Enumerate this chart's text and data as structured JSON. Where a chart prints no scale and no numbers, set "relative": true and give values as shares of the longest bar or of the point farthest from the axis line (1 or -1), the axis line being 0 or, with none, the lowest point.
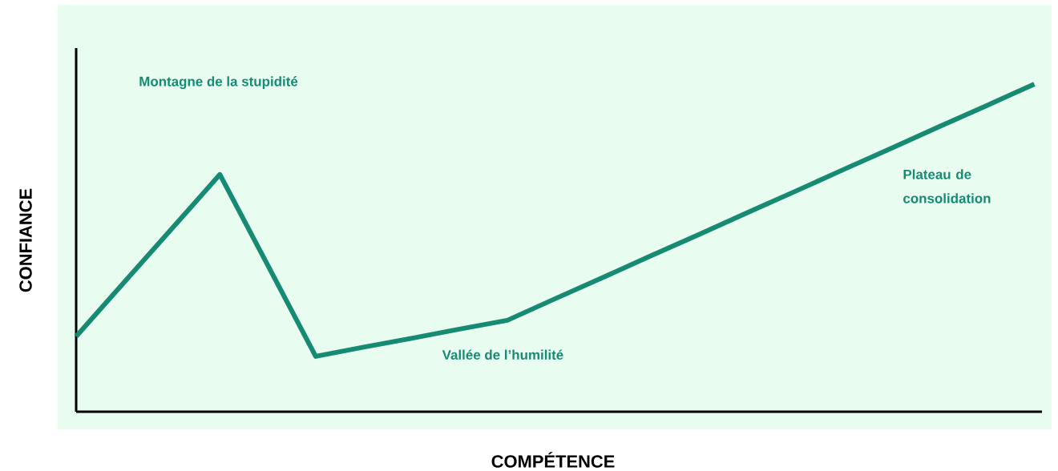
{
  "chart_data": {
    "type": "line",
    "relative": true,
    "xlabel": "COMPÉTENCE",
    "ylabel": "CONFIANCE",
    "categories": [
      null,
      null,
      null,
      null,
      null,
      null,
      null,
      null,
      null,
      null,
      null,
      null,
      null,
      null,
      null,
      null,
      null,
      null,
      null,
      null,
      null
    ],
    "series": [
      {
        "color": "#168a73",
        "values": [
          0.23,
          0.395,
          0.559,
          0.724,
          0.447,
          0.169,
          0.197,
          0.224,
          0.252,
          0.279,
          0.345,
          0.41,
          0.476,
          0.541,
          0.607,
          0.672,
          0.738,
          0.803,
          0.869,
          0.934,
          1
        ]
      }
    ],
    "annotations": [
      "Montagne de la stupidité",
      "Vallée de l’humilité",
      "Plateau de consolidation"
    ],
    "marker": "none",
    "line_style": "solid"
  }
}
